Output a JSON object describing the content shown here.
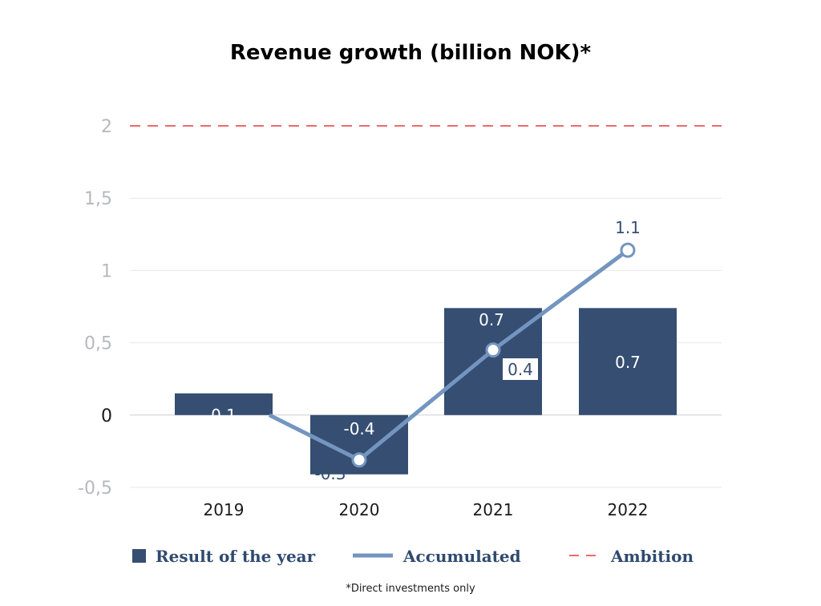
{
  "chart_data": {
    "type": "bar",
    "title": "Revenue growth (billion NOK)*",
    "categories": [
      "2019",
      "2020",
      "2021",
      "2022"
    ],
    "series": [
      {
        "name": "Result of the year",
        "type": "bar",
        "values": [
          0.15,
          -0.41,
          0.74,
          0.74
        ],
        "labels": [
          "0.1",
          "-0.4",
          "0.7",
          "0.7"
        ]
      },
      {
        "name": "Accumulated",
        "type": "line",
        "values": [
          0.0,
          -0.31,
          0.45,
          1.14
        ],
        "labels": [
          "",
          "-0.3",
          "0.4",
          "1.1"
        ]
      },
      {
        "name": "Ambition",
        "type": "line",
        "style": "dashed",
        "value": 2
      }
    ],
    "yticks": [
      -0.5,
      0,
      0.5,
      1,
      1.5,
      2
    ],
    "ytick_labels": [
      "-0,5",
      "0",
      "0,5",
      "1",
      "1,5",
      "2"
    ],
    "ylim": [
      -0.5,
      2
    ],
    "grid": true,
    "legend_position": "bottom",
    "footnote": "*Direct investments only",
    "colors": {
      "bar": "#354e72",
      "line": "#7395c0",
      "ambition": "#e63a3a",
      "grid": "#e8e8e8",
      "tick": "#b7b9bd"
    }
  }
}
